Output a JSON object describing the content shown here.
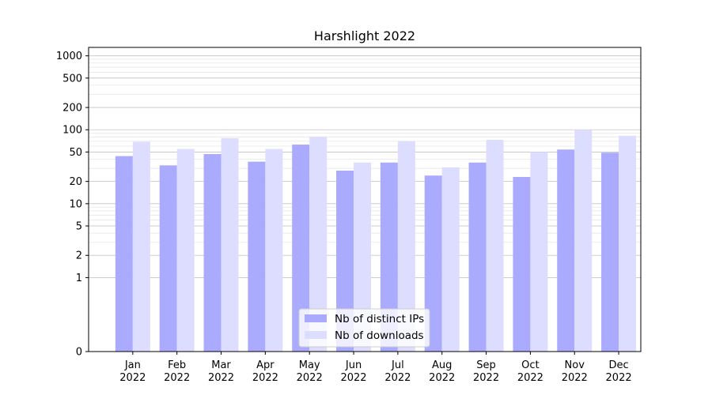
{
  "chart_data": {
    "type": "bar",
    "title": "Harshlight 2022",
    "xlabel": "",
    "ylabel": "",
    "scale": "symlog",
    "categories": [
      [
        "Jan",
        "2022"
      ],
      [
        "Feb",
        "2022"
      ],
      [
        "Mar",
        "2022"
      ],
      [
        "Apr",
        "2022"
      ],
      [
        "May",
        "2022"
      ],
      [
        "Jun",
        "2022"
      ],
      [
        "Jul",
        "2022"
      ],
      [
        "Aug",
        "2022"
      ],
      [
        "Sep",
        "2022"
      ],
      [
        "Oct",
        "2022"
      ],
      [
        "Nov",
        "2022"
      ],
      [
        "Dec",
        "2022"
      ]
    ],
    "series": [
      {
        "name": "Nb of distinct IPs",
        "color": "#aaaaff",
        "values": [
          44,
          33,
          47,
          37,
          63,
          28,
          36,
          24,
          36,
          23,
          54,
          49
        ]
      },
      {
        "name": "Nb of downloads",
        "color": "#ddddff",
        "values": [
          69,
          55,
          77,
          55,
          80,
          36,
          70,
          31,
          73,
          50,
          100,
          83
        ]
      }
    ],
    "yticks": [
      0,
      1,
      2,
      5,
      10,
      20,
      50,
      100,
      200,
      500,
      1000
    ],
    "ylim": [
      0,
      1300
    ],
    "grid": true,
    "legend_position": "bottom-center"
  }
}
